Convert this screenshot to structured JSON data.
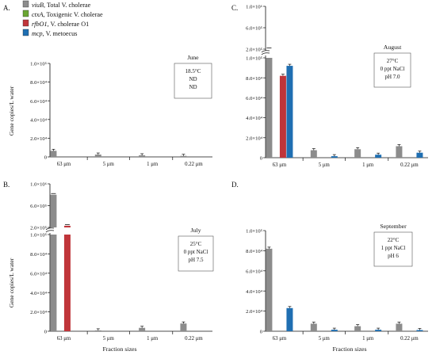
{
  "legend": [
    {
      "gene": "viuB",
      "desc": ",  Total V. cholerae",
      "color": "#8c8c8c"
    },
    {
      "gene": "ctxA",
      "desc": ",  Toxigenic V. cholerae",
      "color": "#6aa632"
    },
    {
      "gene": "rfbO1",
      "desc": ", V. cholerae O1",
      "color": "#c0353a"
    },
    {
      "gene": "mcp",
      "desc": ",    V. metoecus",
      "color": "#1f6fb2"
    }
  ],
  "colors": {
    "viuB": "#8c8c8c",
    "ctxA": "#6aa632",
    "rfbO1": "#c0353a",
    "mcp": "#1f6fb2"
  },
  "chart_data": [
    {
      "panel": "A.",
      "type": "bar",
      "ylabel": "Gene copies/L water",
      "xlabel": "",
      "categories": [
        "63 μm",
        "5 μm",
        "1 μm",
        "0.22 μm"
      ],
      "yticks_lower": [
        "0",
        "2.0×10⁴",
        "4.0×10⁴",
        "6.0×10⁴",
        "8.0×10⁴",
        "1.0×10⁵"
      ],
      "ylim": [
        0,
        100000
      ],
      "series": [
        {
          "name": "viuB",
          "values": [
            6500,
            2500,
            1700,
            1100
          ]
        },
        {
          "name": "ctxA",
          "values": [
            0,
            0,
            0,
            0
          ]
        },
        {
          "name": "rfbO1",
          "values": [
            0,
            0,
            0,
            0
          ]
        },
        {
          "name": "mcp",
          "values": [
            0,
            0,
            0,
            0
          ]
        }
      ],
      "info_box": {
        "month": "June",
        "lines": [
          "18.5°C",
          "ND",
          "ND"
        ]
      }
    },
    {
      "panel": "B.",
      "type": "bar",
      "ylabel": "Gene copies/L water",
      "xlabel": "Fraction sizes",
      "categories": [
        "63 μm",
        "5 μm",
        "1 μm",
        "0.22 μm"
      ],
      "yticks_lower": [
        "0",
        "2.0×10⁴",
        "4.0×10⁴",
        "6.0×10⁴",
        "8.0×10⁴",
        "1.0×10⁵"
      ],
      "yticks_upper": [
        "2.0×10⁵",
        "6.0×10⁵",
        "1.0×10⁶"
      ],
      "ylim": [
        0,
        1000000
      ],
      "axis_break": true,
      "series": [
        {
          "name": "viuB",
          "values": [
            800000,
            900,
            3500,
            8000
          ]
        },
        {
          "name": "ctxA",
          "values": [
            0,
            0,
            0,
            0
          ]
        },
        {
          "name": "rfbO1",
          "values": [
            230000,
            0,
            0,
            0
          ]
        },
        {
          "name": "mcp",
          "values": [
            0,
            0,
            0,
            0
          ]
        }
      ],
      "info_box": {
        "month": "July",
        "lines": [
          "25°C",
          "0 ppt NaCl",
          "pH 7.5"
        ]
      }
    },
    {
      "panel": "C.",
      "type": "bar",
      "ylabel": "",
      "xlabel": "",
      "categories": [
        "63 μm",
        "5 μm",
        "1 μm",
        "0.22 μm"
      ],
      "yticks_lower": [
        "0",
        "2.0×10⁴",
        "4.0×10⁴",
        "6.0×10⁴",
        "8.0×10⁴",
        "1.0×10⁵"
      ],
      "yticks_upper": [
        "2.0×10⁵",
        "6.0×10⁵",
        "1.0×10⁶"
      ],
      "ylim": [
        0,
        1000000
      ],
      "axis_break": true,
      "series": [
        {
          "name": "viuB",
          "values": [
            200000,
            7500,
            8500,
            11500
          ]
        },
        {
          "name": "ctxA",
          "values": [
            0,
            0,
            0,
            0
          ]
        },
        {
          "name": "rfbO1",
          "values": [
            82000,
            0,
            0,
            0
          ]
        },
        {
          "name": "mcp",
          "values": [
            92000,
            1500,
            3000,
            5000
          ]
        }
      ],
      "info_box": {
        "month": "August",
        "lines": [
          "27°C",
          "0 ppt NaCl",
          "pH 7.0"
        ]
      }
    },
    {
      "panel": "D.",
      "type": "bar",
      "ylabel": "",
      "xlabel": "Fraction sizes",
      "categories": [
        "63 μm",
        "5 μm",
        "1 μm",
        "0.22 μm"
      ],
      "yticks_lower": [
        "0",
        "2.0×10⁴",
        "4.0×10⁴",
        "6.0×10⁴",
        "8.0×10⁴",
        "1.0×10⁵"
      ],
      "ylim": [
        0,
        100000
      ],
      "series": [
        {
          "name": "viuB",
          "values": [
            82000,
            7500,
            5000,
            7500
          ]
        },
        {
          "name": "ctxA",
          "values": [
            0,
            0,
            0,
            0
          ]
        },
        {
          "name": "rfbO1",
          "values": [
            0,
            0,
            0,
            0
          ]
        },
        {
          "name": "mcp",
          "values": [
            23000,
            1500,
            1500,
            1200
          ]
        }
      ],
      "info_box": {
        "month": "September",
        "lines": [
          "22°C",
          "1 ppt NaCl",
          "pH 6"
        ]
      }
    }
  ]
}
